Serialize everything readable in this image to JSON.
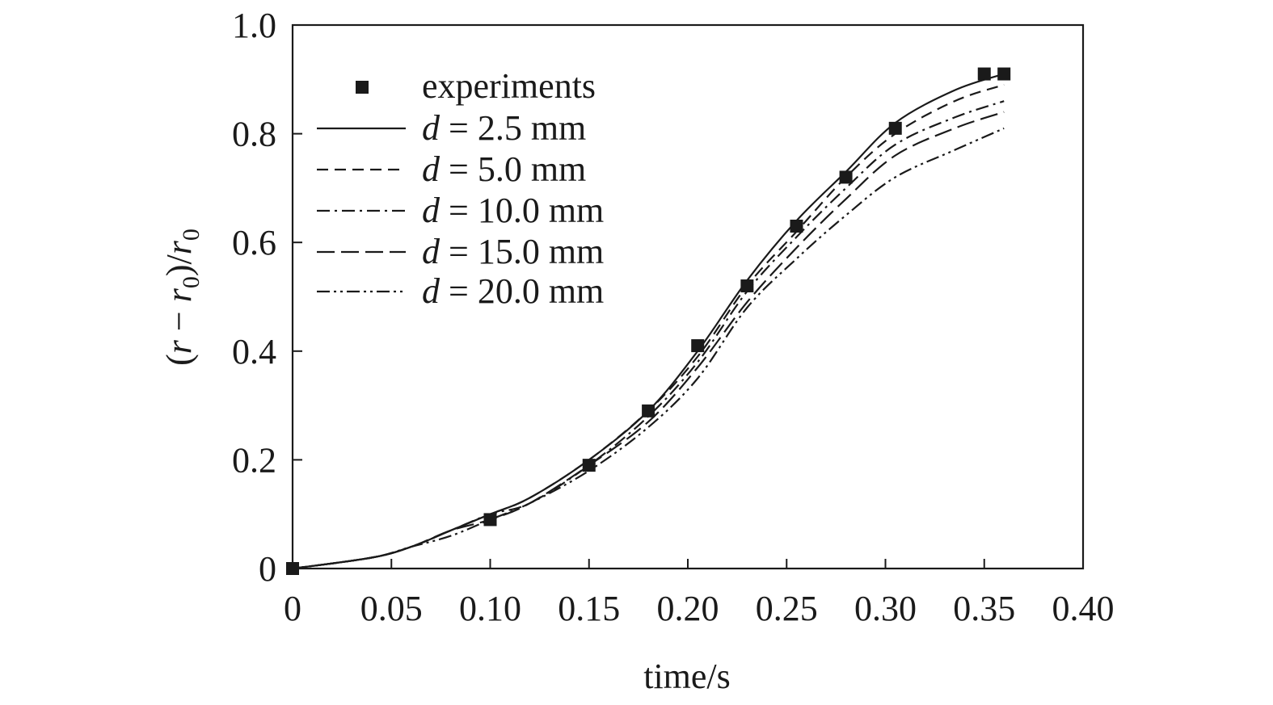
{
  "chart_data": {
    "type": "line",
    "xlabel": "time/s",
    "ylabel": {
      "open": "(",
      "r": "r",
      "minus": " − ",
      "r0": "r",
      "sub0": "0",
      "close": ")/",
      "r0b": "r",
      "sub0b": "0"
    },
    "xlim": [
      0,
      0.4
    ],
    "ylim": [
      0,
      1.0
    ],
    "x_ticks": [
      0,
      0.05,
      0.1,
      0.15,
      0.2,
      0.25,
      0.3,
      0.35,
      0.4
    ],
    "x_tick_labels": [
      "0",
      "0.05",
      "0.10",
      "0.15",
      "0.20",
      "0.25",
      "0.30",
      "0.35",
      "0.40"
    ],
    "y_ticks": [
      0,
      0.2,
      0.4,
      0.6,
      0.8,
      1.0
    ],
    "y_tick_labels": [
      "0",
      "0.2",
      "0.4",
      "0.6",
      "0.8",
      "1.0"
    ],
    "grid": false,
    "legend_position": "top-left",
    "color": "#1a1a1a",
    "experiments": {
      "name": "experiments",
      "x": [
        0,
        0.1,
        0.15,
        0.18,
        0.205,
        0.23,
        0.255,
        0.28,
        0.305,
        0.35,
        0.36
      ],
      "y": [
        0,
        0.09,
        0.19,
        0.29,
        0.41,
        0.52,
        0.63,
        0.72,
        0.81,
        0.91,
        0.91
      ]
    },
    "series": [
      {
        "name_prefix": "d",
        "name_suffix": " = 2.5 mm",
        "dash": "",
        "x": [
          0,
          0.04,
          0.06,
          0.08,
          0.1,
          0.12,
          0.15,
          0.18,
          0.205,
          0.23,
          0.255,
          0.28,
          0.305,
          0.335,
          0.36
        ],
        "y": [
          0,
          0.02,
          0.04,
          0.07,
          0.1,
          0.13,
          0.2,
          0.29,
          0.4,
          0.53,
          0.64,
          0.73,
          0.82,
          0.88,
          0.91
        ]
      },
      {
        "name_prefix": "d",
        "name_suffix": " = 5.0 mm",
        "dash": "14 8",
        "x": [
          0,
          0.04,
          0.06,
          0.08,
          0.1,
          0.12,
          0.15,
          0.18,
          0.205,
          0.23,
          0.255,
          0.28,
          0.305,
          0.335,
          0.36
        ],
        "y": [
          0,
          0.02,
          0.04,
          0.07,
          0.1,
          0.13,
          0.2,
          0.29,
          0.39,
          0.52,
          0.62,
          0.72,
          0.8,
          0.86,
          0.89
        ]
      },
      {
        "name_prefix": "d",
        "name_suffix": " = 10.0 mm",
        "dash": "16 6 3 6",
        "x": [
          0,
          0.04,
          0.06,
          0.08,
          0.1,
          0.12,
          0.15,
          0.18,
          0.205,
          0.23,
          0.255,
          0.28,
          0.305,
          0.335,
          0.36
        ],
        "y": [
          0,
          0.02,
          0.04,
          0.07,
          0.1,
          0.12,
          0.19,
          0.28,
          0.38,
          0.51,
          0.61,
          0.7,
          0.78,
          0.83,
          0.86
        ]
      },
      {
        "name_prefix": "d",
        "name_suffix": " = 15.0 mm",
        "dash": "22 8",
        "x": [
          0,
          0.04,
          0.06,
          0.08,
          0.1,
          0.12,
          0.15,
          0.18,
          0.205,
          0.23,
          0.255,
          0.28,
          0.305,
          0.335,
          0.36
        ],
        "y": [
          0,
          0.02,
          0.04,
          0.07,
          0.09,
          0.12,
          0.19,
          0.27,
          0.37,
          0.49,
          0.59,
          0.68,
          0.76,
          0.81,
          0.84
        ]
      },
      {
        "name_prefix": "d",
        "name_suffix": " = 20.0 mm",
        "dash": "16 5 3 5 3 5",
        "x": [
          0,
          0.04,
          0.06,
          0.08,
          0.1,
          0.12,
          0.15,
          0.18,
          0.205,
          0.23,
          0.255,
          0.28,
          0.305,
          0.335,
          0.36
        ],
        "y": [
          0,
          0.02,
          0.04,
          0.06,
          0.09,
          0.12,
          0.18,
          0.26,
          0.35,
          0.48,
          0.57,
          0.65,
          0.72,
          0.77,
          0.81
        ]
      }
    ]
  }
}
